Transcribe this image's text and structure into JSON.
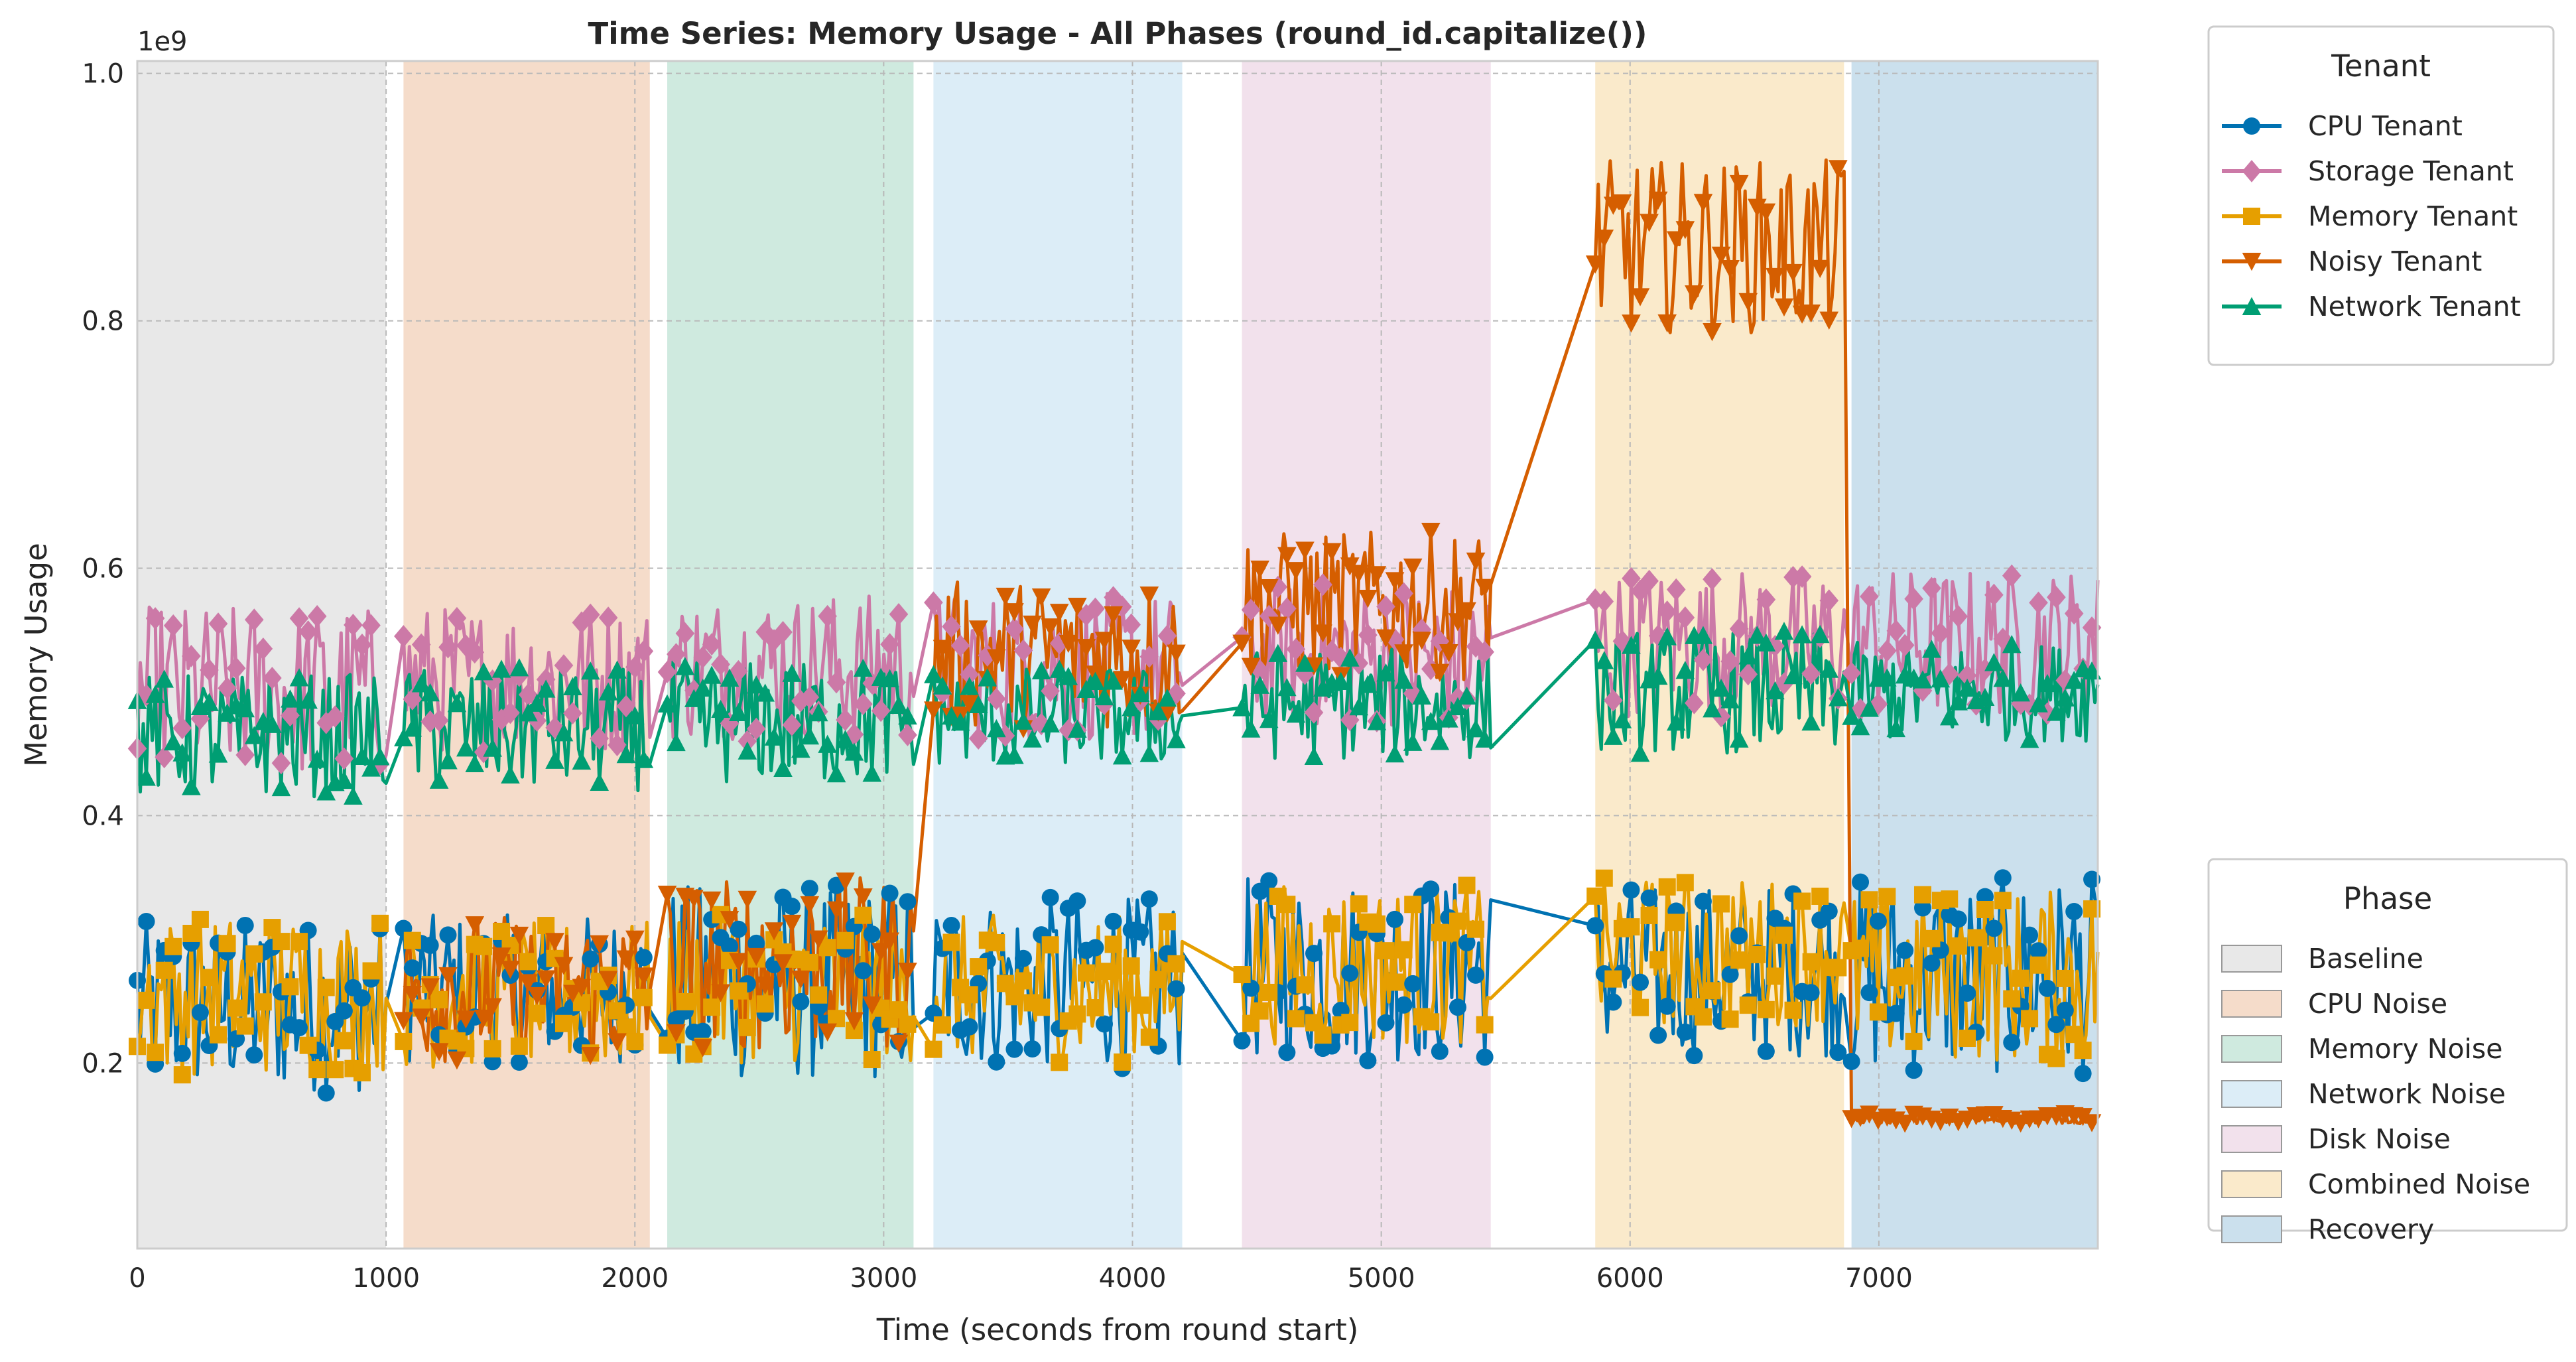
{
  "chart_data": {
    "type": "line",
    "title": "Time Series: Memory Usage - All Phases (round_id.capitalize())",
    "xlabel": "Time (seconds from round start)",
    "ylabel": "Memory Usage",
    "y_offset_label": "1e9",
    "xlim": [
      0,
      7880
    ],
    "ylim": [
      0.05,
      1.01
    ],
    "x_ticks": [
      0,
      1000,
      2000,
      3000,
      4000,
      5000,
      6000,
      7000
    ],
    "x_tick_labels": [
      "0",
      "1000",
      "2000",
      "3000",
      "4000",
      "5000",
      "6000",
      "7000"
    ],
    "y_ticks": [
      0.2,
      0.4,
      0.6,
      0.8,
      1.0
    ],
    "y_tick_labels": [
      "0.2",
      "0.4",
      "0.6",
      "0.8",
      "1.0"
    ],
    "grid": true,
    "phases": [
      {
        "name": "Baseline",
        "start": 0,
        "end": 1000,
        "color": "#e8e8e8"
      },
      {
        "name": "CPU Noise",
        "start": 1070,
        "end": 2060,
        "color": "#f5dcca"
      },
      {
        "name": "Memory Noise",
        "start": 2130,
        "end": 3120,
        "color": "#cfeadf"
      },
      {
        "name": "Network Noise",
        "start": 3200,
        "end": 4200,
        "color": "#dcedf7"
      },
      {
        "name": "Disk Noise",
        "start": 4440,
        "end": 5440,
        "color": "#f2e1ec"
      },
      {
        "name": "Combined Noise",
        "start": 5860,
        "end": 6860,
        "color": "#faeacb"
      },
      {
        "name": "Recovery",
        "start": 6890,
        "end": 7880,
        "color": "#cbe0ed"
      }
    ],
    "phase_legend_title": "Phase",
    "tenant_legend_title": "Tenant",
    "legend_placement": "outside-right",
    "series": [
      {
        "name": "CPU Tenant",
        "color": "#0072b2",
        "marker": "circle",
        "segments": [
          {
            "start": 0,
            "end": 1000,
            "mean": 0.245,
            "amp": 0.07
          },
          {
            "start": 1070,
            "end": 2060,
            "mean": 0.26,
            "amp": 0.06
          },
          {
            "start": 2130,
            "end": 3120,
            "mean": 0.265,
            "amp": 0.08
          },
          {
            "start": 3200,
            "end": 4200,
            "mean": 0.265,
            "amp": 0.07
          },
          {
            "start": 4440,
            "end": 5440,
            "mean": 0.275,
            "amp": 0.075
          },
          {
            "start": 5860,
            "end": 6860,
            "mean": 0.275,
            "amp": 0.07
          },
          {
            "start": 6890,
            "end": 7880,
            "mean": 0.27,
            "amp": 0.08
          }
        ]
      },
      {
        "name": "Storage Tenant",
        "color": "#cc79a7",
        "marker": "diamond",
        "segments": [
          {
            "start": 0,
            "end": 1000,
            "mean": 0.5,
            "amp": 0.07
          },
          {
            "start": 1070,
            "end": 2060,
            "mean": 0.51,
            "amp": 0.06
          },
          {
            "start": 2130,
            "end": 3120,
            "mean": 0.52,
            "amp": 0.06
          },
          {
            "start": 3200,
            "end": 4200,
            "mean": 0.52,
            "amp": 0.06
          },
          {
            "start": 4440,
            "end": 5440,
            "mean": 0.53,
            "amp": 0.06
          },
          {
            "start": 5860,
            "end": 6860,
            "mean": 0.54,
            "amp": 0.06
          },
          {
            "start": 6890,
            "end": 7880,
            "mean": 0.54,
            "amp": 0.06
          }
        ]
      },
      {
        "name": "Memory Tenant",
        "color": "#e69f00",
        "marker": "square",
        "segments": [
          {
            "start": 0,
            "end": 1000,
            "mean": 0.255,
            "amp": 0.065
          },
          {
            "start": 1070,
            "end": 2060,
            "mean": 0.255,
            "amp": 0.06
          },
          {
            "start": 2130,
            "end": 3120,
            "mean": 0.26,
            "amp": 0.06
          },
          {
            "start": 3200,
            "end": 4200,
            "mean": 0.26,
            "amp": 0.06
          },
          {
            "start": 4440,
            "end": 5440,
            "mean": 0.28,
            "amp": 0.065
          },
          {
            "start": 5860,
            "end": 6860,
            "mean": 0.29,
            "amp": 0.06
          },
          {
            "start": 6890,
            "end": 7880,
            "mean": 0.27,
            "amp": 0.07
          }
        ]
      },
      {
        "name": "Noisy Tenant",
        "color": "#d55e00",
        "marker": "triangle-down",
        "segments": [
          {
            "start": 1070,
            "end": 2060,
            "mean": 0.26,
            "amp": 0.06
          },
          {
            "start": 2130,
            "end": 3120,
            "mean": 0.28,
            "amp": 0.07
          },
          {
            "start": 3200,
            "end": 4200,
            "mean": 0.53,
            "amp": 0.06
          },
          {
            "start": 4440,
            "end": 5440,
            "mean": 0.57,
            "amp": 0.06
          },
          {
            "start": 5860,
            "end": 6860,
            "mean": 0.86,
            "amp": 0.07
          },
          {
            "start": 6890,
            "end": 7880,
            "mean": 0.155,
            "amp": 0.004
          }
        ]
      },
      {
        "name": "Network Tenant",
        "color": "#009e73",
        "marker": "triangle-up",
        "segments": [
          {
            "start": 0,
            "end": 1000,
            "mean": 0.465,
            "amp": 0.05
          },
          {
            "start": 1070,
            "end": 2060,
            "mean": 0.47,
            "amp": 0.05
          },
          {
            "start": 2130,
            "end": 3120,
            "mean": 0.475,
            "amp": 0.05
          },
          {
            "start": 3200,
            "end": 4200,
            "mean": 0.48,
            "amp": 0.04
          },
          {
            "start": 4440,
            "end": 5440,
            "mean": 0.49,
            "amp": 0.045
          },
          {
            "start": 5860,
            "end": 6860,
            "mean": 0.5,
            "amp": 0.05
          },
          {
            "start": 6890,
            "end": 7880,
            "mean": 0.5,
            "amp": 0.04
          }
        ]
      }
    ]
  }
}
